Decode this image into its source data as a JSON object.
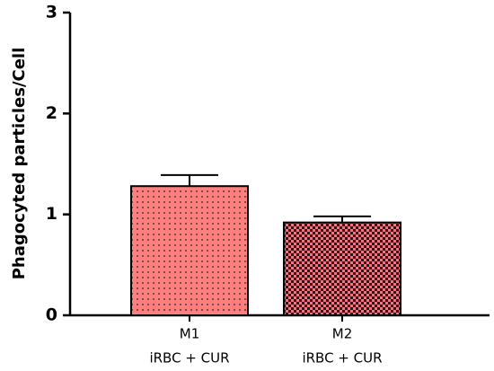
{
  "chart_data": {
    "type": "bar",
    "y_label": "Phagocyted particles/Cell",
    "categories": [
      "M1",
      "M2"
    ],
    "sublabels": [
      "iRBC + CUR",
      "iRBC + CUR"
    ],
    "values": [
      1.28,
      0.92
    ],
    "errors": [
      0.11,
      0.06
    ],
    "colors": [
      "#ff7f7f",
      "#ff6f78"
    ],
    "patterns": [
      "dots",
      "checker"
    ],
    "ylim": [
      0,
      3
    ],
    "yticks": [
      0,
      1,
      2,
      3
    ],
    "grid": false
  }
}
